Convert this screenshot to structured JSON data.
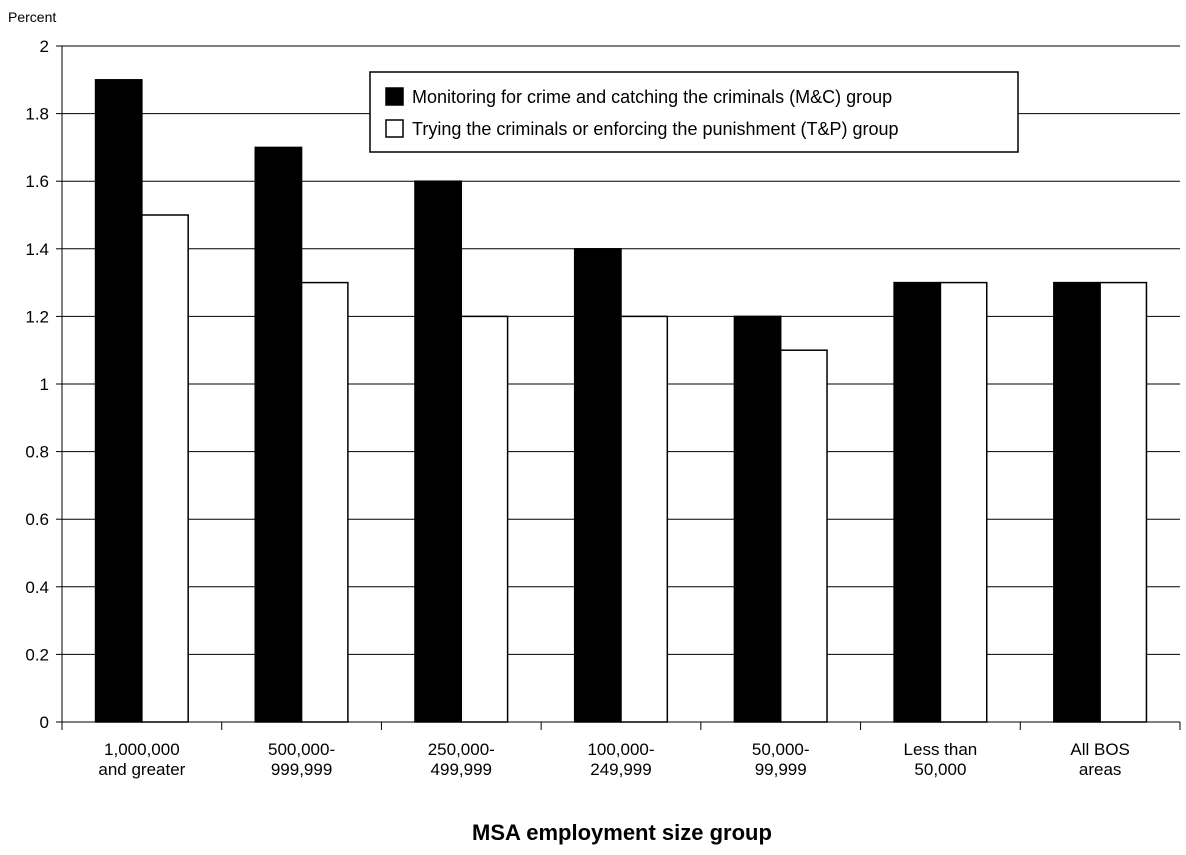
{
  "chart_data": {
    "type": "bar",
    "title": "",
    "ylabel": "Percent",
    "xlabel": "MSA employment size group",
    "ylim": [
      0,
      2
    ],
    "yticks": [
      0,
      0.2,
      0.4,
      0.6,
      0.8,
      1,
      1.2,
      1.4,
      1.6,
      1.8,
      2
    ],
    "ytick_labels": [
      "0",
      "0.2",
      "0.4",
      "0.6",
      "0.8",
      "1",
      "1.2",
      "1.4",
      "1.6",
      "1.8",
      "2"
    ],
    "grid": true,
    "legend_position": "top-center",
    "categories": [
      [
        "1,000,000",
        "and greater"
      ],
      [
        "500,000-",
        "999,999"
      ],
      [
        "250,000-",
        "499,999"
      ],
      [
        "100,000-",
        "249,999"
      ],
      [
        "50,000-",
        "99,999"
      ],
      [
        "Less than",
        "50,000"
      ],
      [
        "All BOS",
        "areas"
      ]
    ],
    "series": [
      {
        "name": "Monitoring for crime and catching the criminals (M&C) group",
        "color": "#000000",
        "values": [
          1.9,
          1.7,
          1.6,
          1.4,
          1.2,
          1.3,
          1.3
        ]
      },
      {
        "name": "Trying the criminals or enforcing the punishment (T&P) group",
        "color": "#ffffff",
        "values": [
          1.5,
          1.3,
          1.2,
          1.2,
          1.1,
          1.3,
          1.3
        ]
      }
    ]
  }
}
